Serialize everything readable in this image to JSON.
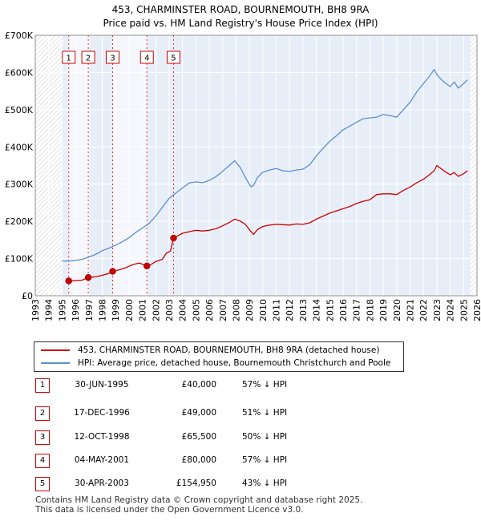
{
  "chart_data": {
    "type": "line",
    "title": "453, CHARMINSTER ROAD, BOURNEMOUTH, BH8 9RA",
    "subtitle": "Price paid vs. HM Land Registry's House Price Index (HPI)",
    "xlim": [
      1993,
      2026
    ],
    "ylim": [
      0,
      700000
    ],
    "x_ticks": [
      "1993",
      "1994",
      "1995",
      "1996",
      "1997",
      "1998",
      "1999",
      "2000",
      "2001",
      "2002",
      "2003",
      "2004",
      "2005",
      "2006",
      "2007",
      "2008",
      "2009",
      "2010",
      "2011",
      "2012",
      "2013",
      "2014",
      "2015",
      "2016",
      "2017",
      "2018",
      "2019",
      "2020",
      "2021",
      "2022",
      "2023",
      "2024",
      "2025",
      "2026"
    ],
    "y_ticks": [
      {
        "value": 0,
        "label": "£0"
      },
      {
        "value": 100000,
        "label": "£100K"
      },
      {
        "value": 200000,
        "label": "£200K"
      },
      {
        "value": 300000,
        "label": "£300K"
      },
      {
        "value": 400000,
        "label": "£400K"
      },
      {
        "value": 500000,
        "label": "£500K"
      },
      {
        "value": 600000,
        "label": "£600K"
      },
      {
        "value": 700000,
        "label": "£700K"
      }
    ],
    "grid": true,
    "series": [
      {
        "name": "453, CHARMINSTER ROAD, BOURNEMOUTH, BH8 9RA (detached house)",
        "color": "#cc0000",
        "x": [
          1995.5,
          1995.9,
          1996.5,
          1996.96,
          1997.5,
          1998.0,
          1998.5,
          1998.78,
          1999.3,
          1999.8,
          2000.3,
          2000.8,
          2001.3,
          2001.6,
          2002.0,
          2002.5,
          2002.8,
          2003.1,
          2003.33,
          2003.6,
          2004.0,
          2004.5,
          2005.0,
          2005.5,
          2006.0,
          2006.5,
          2007.0,
          2007.5,
          2007.9,
          2008.3,
          2008.7,
          2009.1,
          2009.3,
          2009.6,
          2010.0,
          2010.5,
          2011.0,
          2011.5,
          2012.0,
          2012.5,
          2013.0,
          2013.5,
          2014.0,
          2014.5,
          2015.0,
          2015.5,
          2016.0,
          2016.5,
          2017.0,
          2017.5,
          2018.0,
          2018.5,
          2019.0,
          2019.5,
          2020.0,
          2020.5,
          2021.0,
          2021.5,
          2022.0,
          2022.4,
          2022.8,
          2023.0,
          2023.3,
          2023.6,
          2024.0,
          2024.3,
          2024.6,
          2025.0,
          2025.3
        ],
        "values": [
          40000,
          40500,
          42000,
          49000,
          51000,
          55000,
          60000,
          65500,
          70000,
          76000,
          84000,
          88000,
          80000,
          83000,
          92000,
          98000,
          115000,
          120000,
          154950,
          160000,
          168000,
          172000,
          176000,
          174000,
          176000,
          180000,
          188000,
          197000,
          206000,
          201000,
          192000,
          173000,
          165000,
          178000,
          186000,
          190000,
          192000,
          191000,
          190000,
          193000,
          192000,
          196000,
          206000,
          214000,
          222000,
          228000,
          234000,
          240000,
          248000,
          254000,
          258000,
          272000,
          274000,
          274000,
          272000,
          283000,
          292000,
          304000,
          313000,
          324000,
          336000,
          350000,
          342000,
          334000,
          325000,
          331000,
          321000,
          328000,
          336000
        ]
      },
      {
        "name": "HPI: Average price, detached house, Bournemouth Christchurch and Poole",
        "color": "#5b8fd0",
        "x": [
          1995.0,
          1995.5,
          1996.0,
          1996.5,
          1997.0,
          1997.5,
          1998.0,
          1998.5,
          1999.0,
          1999.5,
          2000.0,
          2000.5,
          2001.0,
          2001.5,
          2002.0,
          2002.5,
          2003.0,
          2003.5,
          2004.0,
          2004.5,
          2005.0,
          2005.5,
          2006.0,
          2006.5,
          2007.0,
          2007.5,
          2007.9,
          2008.3,
          2008.7,
          2009.1,
          2009.3,
          2009.6,
          2010.0,
          2010.5,
          2011.0,
          2011.5,
          2012.0,
          2012.5,
          2013.0,
          2013.5,
          2014.0,
          2014.5,
          2015.0,
          2015.5,
          2016.0,
          2016.5,
          2017.0,
          2017.5,
          2018.0,
          2018.5,
          2019.0,
          2019.5,
          2020.0,
          2020.5,
          2021.0,
          2021.5,
          2022.0,
          2022.4,
          2022.8,
          2023.0,
          2023.3,
          2023.6,
          2024.0,
          2024.3,
          2024.6,
          2025.0,
          2025.3
        ],
        "values": [
          94000,
          93000,
          95000,
          98000,
          104000,
          111000,
          121000,
          128000,
          136000,
          145000,
          156000,
          170000,
          182000,
          194000,
          214000,
          238000,
          262000,
          276000,
          290000,
          303000,
          306000,
          304000,
          310000,
          320000,
          335000,
          350000,
          363000,
          345000,
          318000,
          293000,
          296000,
          318000,
          332000,
          338000,
          342000,
          336000,
          334000,
          338000,
          340000,
          352000,
          376000,
          396000,
          415000,
          430000,
          446000,
          456000,
          466000,
          476000,
          478000,
          480000,
          487000,
          484000,
          480000,
          500000,
          520000,
          548000,
          570000,
          588000,
          608000,
          595000,
          582000,
          573000,
          562000,
          575000,
          558000,
          570000,
          580000
        ]
      }
    ],
    "sales": [
      {
        "num": "1",
        "x": 1995.5,
        "value": 40000
      },
      {
        "num": "2",
        "x": 1996.96,
        "value": 49000
      },
      {
        "num": "3",
        "x": 1998.78,
        "value": 65500
      },
      {
        "num": "4",
        "x": 2001.34,
        "value": 80000
      },
      {
        "num": "5",
        "x": 2003.33,
        "value": 154950
      }
    ],
    "legend": [
      "453, CHARMINSTER ROAD, BOURNEMOUTH, BH8 9RA (detached house)",
      "HPI: Average price, detached house, Bournemouth Christchurch and Poole"
    ]
  },
  "legend": {
    "property_label": "453, CHARMINSTER ROAD, BOURNEMOUTH, BH8 9RA (detached house)",
    "hpi_label": "HPI: Average price, detached house, Bournemouth Christchurch and Poole"
  },
  "sales_table": [
    {
      "num": "1",
      "date": "30-JUN-1995",
      "price": "£40,000",
      "hpi": "57% ↓ HPI"
    },
    {
      "num": "2",
      "date": "17-DEC-1996",
      "price": "£49,000",
      "hpi": "51% ↓ HPI"
    },
    {
      "num": "3",
      "date": "12-OCT-1998",
      "price": "£65,500",
      "hpi": "50% ↓ HPI"
    },
    {
      "num": "4",
      "date": "04-MAY-2001",
      "price": "£80,000",
      "hpi": "57% ↓ HPI"
    },
    {
      "num": "5",
      "date": "30-APR-2003",
      "price": "£154,950",
      "hpi": "43% ↓ HPI"
    }
  ],
  "footer": {
    "line1": "Contains HM Land Registry data © Crown copyright and database right 2025.",
    "line2": "This data is licensed under the Open Government Licence v3.0."
  },
  "colors": {
    "property": "#cc0000",
    "hpi": "#5b8fd0",
    "plot_bg": "#e8eef8",
    "grid": "#ffffff"
  }
}
